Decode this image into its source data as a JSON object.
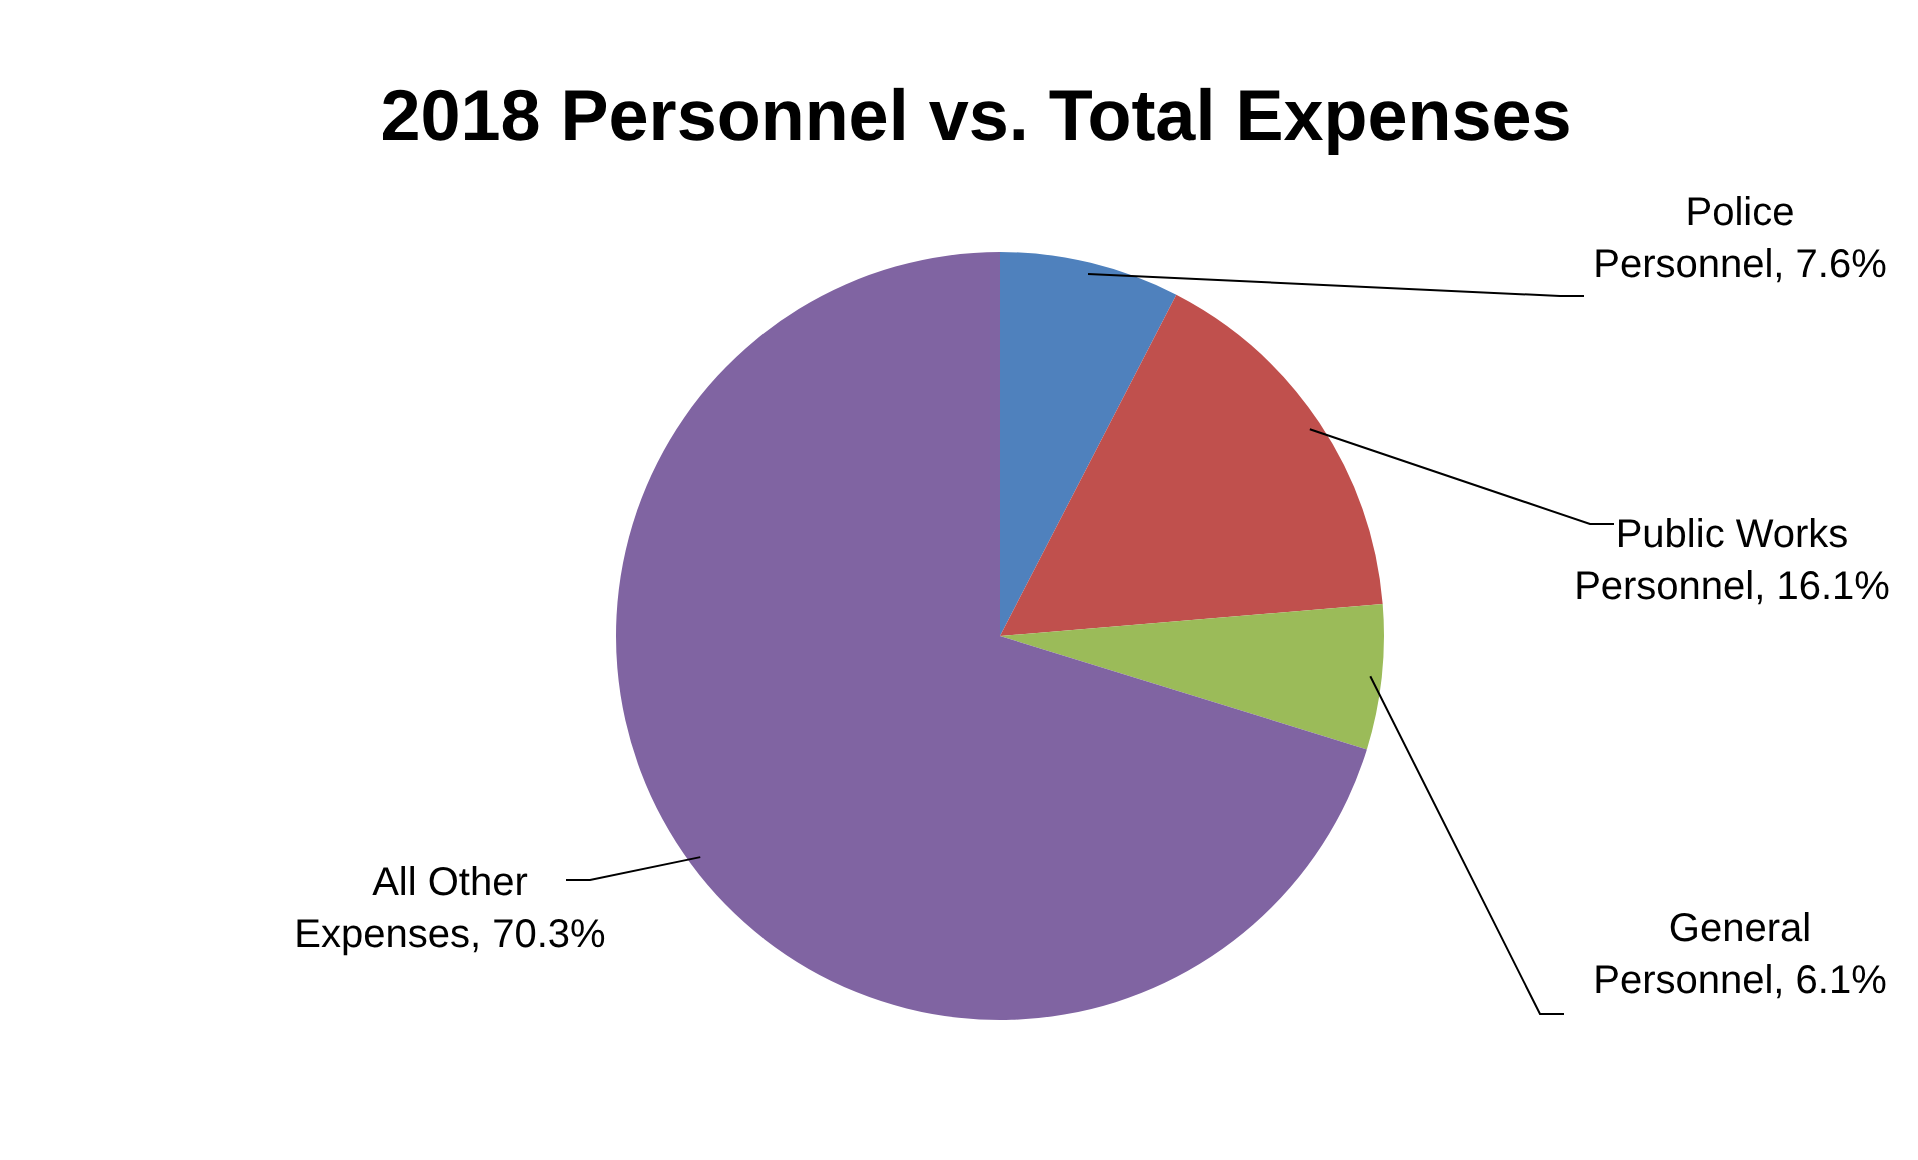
{
  "chart_data": {
    "type": "pie",
    "title": "2018 Personnel vs. Total Expenses",
    "categories": [
      "Police Personnel",
      "Public Works Personnel",
      "General Personnel",
      "All Other Expenses"
    ],
    "values": [
      7.6,
      16.1,
      6.1,
      70.3
    ],
    "colors": [
      "#4f81bd",
      "#c0504d",
      "#9bbb59",
      "#8064a2"
    ],
    "value_labels": [
      "7.6%",
      "16.1%",
      "6.1%",
      "70.3%"
    ],
    "legend": false
  }
}
